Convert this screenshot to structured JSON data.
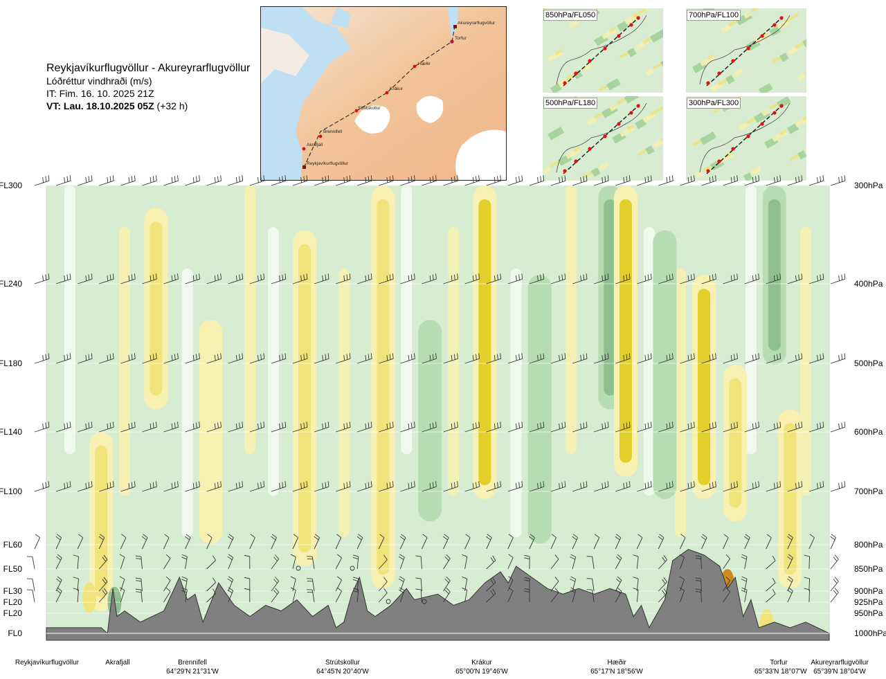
{
  "header": {
    "route": "Reykjavíkurflugvöllur - Akureyrarflugvöllur",
    "variable": "Lóðréttur vindhraði (m/s)",
    "issued": "IT: Fim. 16. 10. 2025 21Z",
    "valid_bold": "VT: Lau. 18.10.2025 05Z",
    "valid_offset": "(+32 h)"
  },
  "map": {
    "waypoints": [
      "Akureyrarflugvöllur",
      "Torfur",
      "Hæðir",
      "Krákur",
      "Strútskollur",
      "Brennifell",
      "Akrafjall",
      "Reykjavíkurflugvöllur"
    ]
  },
  "mini_maps": [
    {
      "label": "850hPa/FL050"
    },
    {
      "label": "700hPa/FL100"
    },
    {
      "label": "500hPa/FL180"
    },
    {
      "label": "300hPa/FL300"
    }
  ],
  "colors": {
    "strong_down": "#8fbf8f",
    "down": "#b7dcb4",
    "weak_down": "#d6edd2",
    "neutral": "#f3faef",
    "weak_up": "#f7f0b0",
    "up": "#efe37a",
    "strong_up": "#e2cf2a",
    "very_strong_up": "#c98a1e",
    "terrain": "#808080"
  },
  "chart_data": {
    "type": "heatmap",
    "title": "Lóðréttur vindhraði (m/s)",
    "flight_levels": [
      "FL300",
      "FL240",
      "FL180",
      "FL140",
      "FL100",
      "FL60",
      "FL50",
      "FL30",
      "FL20",
      "FL20",
      "FL0"
    ],
    "pressure_levels": [
      "300hPa",
      "400hPa",
      "500hPa",
      "600hPa",
      "700hPa",
      "800hPa",
      "850hPa",
      "900hPa",
      "925hPa",
      "950hPa",
      "1000hPa"
    ],
    "locations": [
      {
        "name": "Reykjavíkurflugvöllur",
        "coords": ""
      },
      {
        "name": "Akrafjall",
        "coords": ""
      },
      {
        "name": "Brennifell",
        "coords": "64°29'N 21°31'W"
      },
      {
        "name": "Strútskollur",
        "coords": "64°45'N 20°40'W"
      },
      {
        "name": "Krákur",
        "coords": "65°00'N 19°46'W"
      },
      {
        "name": "Hæðir",
        "coords": "65°17'N 18°56'W"
      },
      {
        "name": "Torfur",
        "coords": "65°33'N 18°07'W"
      },
      {
        "name": "Akureyrarflugvöllur",
        "coords": "65°39'N 18°04'W"
      }
    ],
    "vertical_wind_bands": [
      {
        "x": 0.07,
        "level": "up",
        "from": 0.55,
        "to": 0.95
      },
      {
        "x": 0.14,
        "level": "up",
        "from": 0.05,
        "to": 0.5
      },
      {
        "x": 0.21,
        "level": "weak_up",
        "from": 0.3,
        "to": 0.8
      },
      {
        "x": 0.33,
        "level": "up",
        "from": 0.1,
        "to": 0.85
      },
      {
        "x": 0.43,
        "level": "up",
        "from": 0.0,
        "to": 0.9
      },
      {
        "x": 0.49,
        "level": "down",
        "from": 0.3,
        "to": 0.75
      },
      {
        "x": 0.56,
        "level": "strong_up",
        "from": 0.0,
        "to": 0.7
      },
      {
        "x": 0.63,
        "level": "down",
        "from": 0.2,
        "to": 0.8
      },
      {
        "x": 0.72,
        "level": "strong_down",
        "from": 0.0,
        "to": 0.5
      },
      {
        "x": 0.74,
        "level": "strong_up",
        "from": 0.0,
        "to": 0.65
      },
      {
        "x": 0.79,
        "level": "down",
        "from": 0.1,
        "to": 0.7
      },
      {
        "x": 0.84,
        "level": "strong_up",
        "from": 0.2,
        "to": 0.7
      },
      {
        "x": 0.88,
        "level": "up",
        "from": 0.4,
        "to": 0.75
      },
      {
        "x": 0.93,
        "level": "strong_down",
        "from": 0.0,
        "to": 0.4
      },
      {
        "x": 0.95,
        "level": "up",
        "from": 0.5,
        "to": 0.9
      }
    ],
    "terrain_profile": [
      [
        0.0,
        0.01
      ],
      [
        0.07,
        0.01
      ],
      [
        0.078,
        0.0
      ],
      [
        0.085,
        0.08
      ],
      [
        0.09,
        0.03
      ],
      [
        0.1,
        0.04
      ],
      [
        0.12,
        0.02
      ],
      [
        0.15,
        0.04
      ],
      [
        0.17,
        0.1
      ],
      [
        0.18,
        0.06
      ],
      [
        0.19,
        0.07
      ],
      [
        0.2,
        0.02
      ],
      [
        0.22,
        0.09
      ],
      [
        0.24,
        0.05
      ],
      [
        0.26,
        0.03
      ],
      [
        0.28,
        0.05
      ],
      [
        0.3,
        0.04
      ],
      [
        0.32,
        0.06
      ],
      [
        0.34,
        0.03
      ],
      [
        0.36,
        0.05
      ],
      [
        0.37,
        0.01
      ],
      [
        0.38,
        0.02
      ],
      [
        0.39,
        0.07
      ],
      [
        0.4,
        0.1
      ],
      [
        0.41,
        0.04
      ],
      [
        0.42,
        0.03
      ],
      [
        0.44,
        0.05
      ],
      [
        0.46,
        0.08
      ],
      [
        0.47,
        0.06
      ],
      [
        0.5,
        0.07
      ],
      [
        0.52,
        0.05
      ],
      [
        0.54,
        0.06
      ],
      [
        0.56,
        0.09
      ],
      [
        0.58,
        0.11
      ],
      [
        0.59,
        0.09
      ],
      [
        0.6,
        0.12
      ],
      [
        0.62,
        0.1
      ],
      [
        0.64,
        0.08
      ],
      [
        0.66,
        0.07
      ],
      [
        0.68,
        0.08
      ],
      [
        0.7,
        0.07
      ],
      [
        0.72,
        0.08
      ],
      [
        0.74,
        0.07
      ],
      [
        0.75,
        0.03
      ],
      [
        0.76,
        0.05
      ],
      [
        0.77,
        0.01
      ],
      [
        0.79,
        0.06
      ],
      [
        0.8,
        0.13
      ],
      [
        0.82,
        0.15
      ],
      [
        0.84,
        0.14
      ],
      [
        0.86,
        0.12
      ],
      [
        0.87,
        0.08
      ],
      [
        0.88,
        0.1
      ],
      [
        0.89,
        0.03
      ],
      [
        0.9,
        0.06
      ],
      [
        0.91,
        0.01
      ],
      [
        0.93,
        0.02
      ],
      [
        0.95,
        0.01
      ],
      [
        0.97,
        0.02
      ],
      [
        1.0,
        0.0
      ]
    ]
  }
}
